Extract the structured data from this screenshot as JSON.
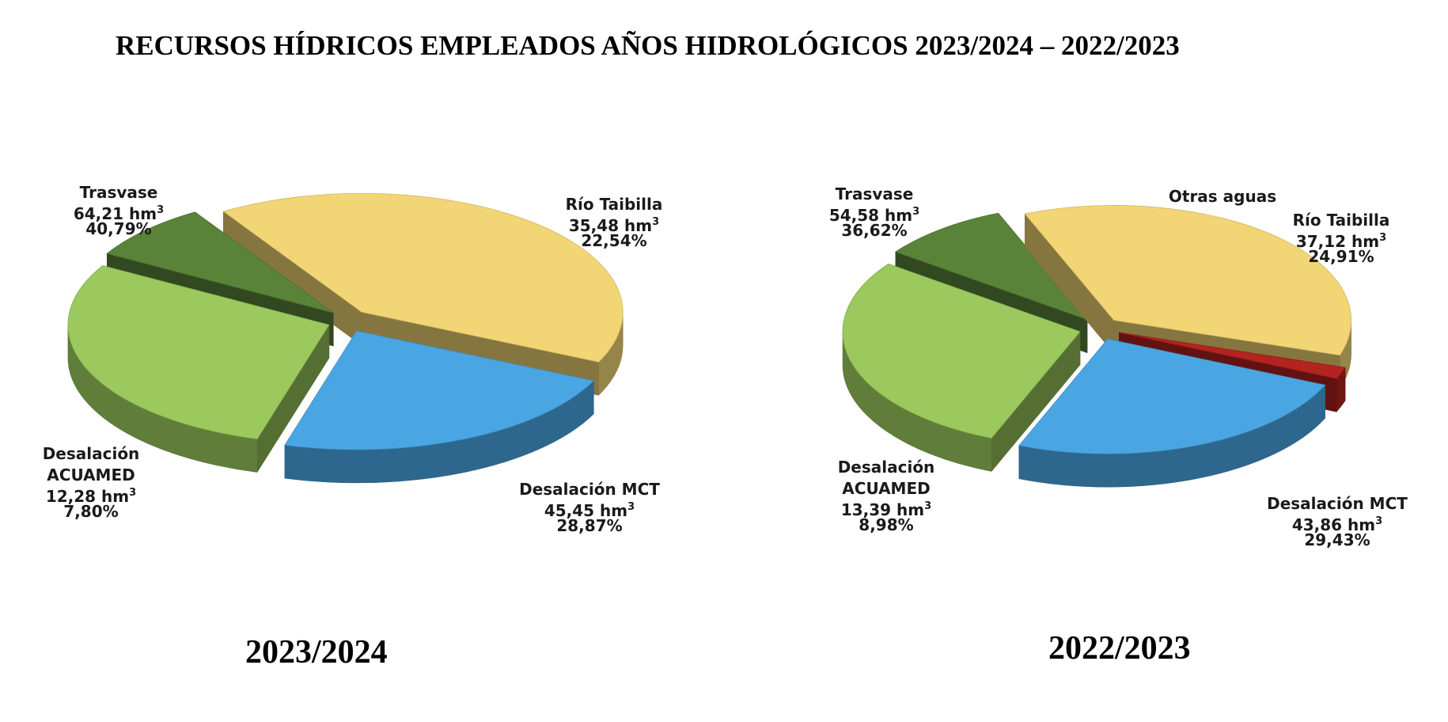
{
  "title": "RECURSOS HÍDRICOS EMPLEADOS AÑOS HIDROLÓGICOS 2023/2024 – 2022/2023",
  "unit_sup": "3",
  "chart_data": [
    {
      "type": "pie",
      "year_label": "2023/2024",
      "unit": "hm",
      "slices": [
        {
          "name": "Trasvase",
          "value": 64.21,
          "value_label": "64,21 hm",
          "pct_label": "40,79%",
          "color": "#f2d675"
        },
        {
          "name": "Río Taibilla",
          "value": 35.48,
          "value_label": "35,48 hm",
          "pct_label": "22,54%",
          "color": "#4aa6e3"
        },
        {
          "name": "Desalación MCT",
          "value": 45.45,
          "value_label": "45,45 hm",
          "pct_label": "28,87%",
          "color": "#9bc95d"
        },
        {
          "name": "Desalación ACUAMED",
          "value": 12.28,
          "value_label": "12,28 hm",
          "pct_label": "7,80%",
          "color": "#5a833a"
        }
      ]
    },
    {
      "type": "pie",
      "year_label": "2022/2023",
      "unit": "hm",
      "slices": [
        {
          "name": "Trasvase",
          "value": 54.58,
          "value_label": "54,58 hm",
          "pct_label": "36,62%",
          "color": "#f2d675"
        },
        {
          "name": "Otras aguas",
          "value": 0,
          "value_label": "",
          "pct_label": "",
          "color": "#b3231f"
        },
        {
          "name": "Río Taibilla",
          "value": 37.12,
          "value_label": "37,12 hm",
          "pct_label": "24,91%",
          "color": "#4aa6e3"
        },
        {
          "name": "Desalación MCT",
          "value": 43.86,
          "value_label": "43,86 hm",
          "pct_label": "29,43%",
          "color": "#9bc95d"
        },
        {
          "name": "Desalación ACUAMED",
          "value": 13.39,
          "value_label": "13,39 hm",
          "pct_label": "8,98%",
          "color": "#5a833a"
        }
      ]
    }
  ]
}
